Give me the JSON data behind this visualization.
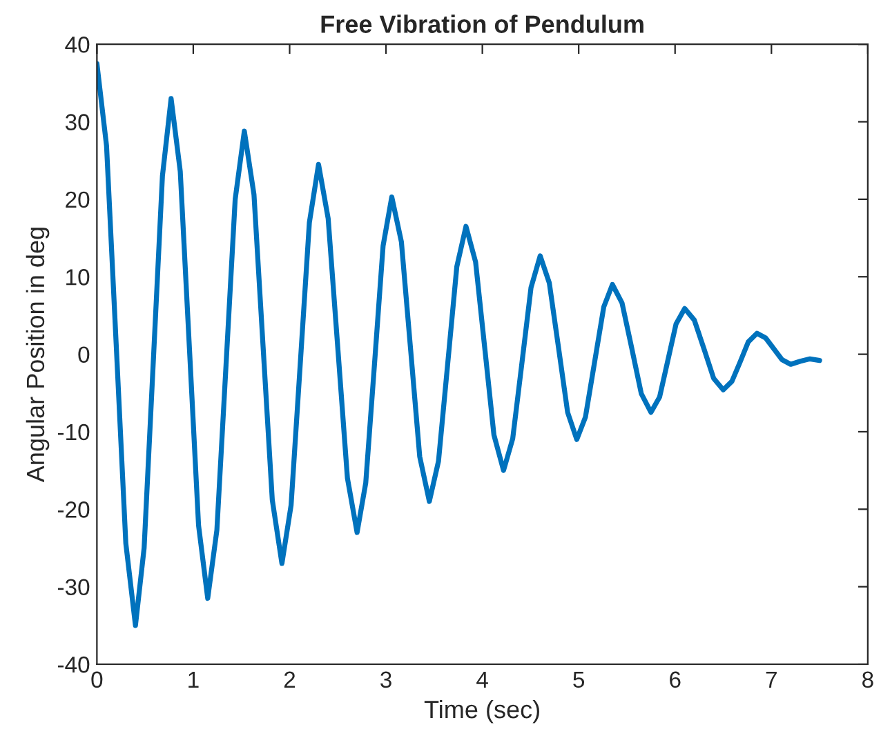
{
  "chart_data": {
    "type": "line",
    "title": "Free Vibration of Pendulum",
    "xlabel": "Time (sec)",
    "ylabel": "Angular Position in deg",
    "xlim": [
      0,
      8
    ],
    "ylim": [
      -40,
      40
    ],
    "xticks": [
      0,
      1,
      2,
      3,
      4,
      5,
      6,
      7,
      8
    ],
    "yticks": [
      -40,
      -30,
      -20,
      -10,
      0,
      10,
      20,
      30,
      40
    ],
    "grid": false,
    "legend": false,
    "line_style": "solid",
    "marker": "none",
    "series": [
      {
        "color": "#0072bd",
        "x": [
          0,
          0.1,
          0.2,
          0.3,
          0.4,
          0.49,
          0.585,
          0.68,
          0.77,
          0.865,
          0.96,
          1.055,
          1.15,
          1.245,
          1.34,
          1.435,
          1.53,
          1.63,
          1.725,
          1.82,
          1.92,
          2.015,
          2.11,
          2.205,
          2.3,
          2.4,
          2.5,
          2.6,
          2.7,
          2.79,
          2.88,
          2.97,
          3.06,
          3.16,
          3.255,
          3.35,
          3.45,
          3.545,
          3.64,
          3.735,
          3.83,
          3.93,
          4.025,
          4.12,
          4.22,
          4.315,
          4.41,
          4.505,
          4.6,
          4.695,
          4.79,
          4.885,
          4.98,
          5.07,
          5.165,
          5.26,
          5.35,
          5.45,
          5.55,
          5.65,
          5.75,
          5.84,
          5.925,
          6.01,
          6.1,
          6.2,
          6.3,
          6.4,
          6.5,
          6.59,
          6.675,
          6.76,
          6.85,
          6.94,
          7.025,
          7.11,
          7.2,
          7.3,
          7.4,
          7.5
        ],
        "values": [
          37.5,
          26.9,
          1.3,
          -24.4,
          -35,
          -25,
          -1,
          23,
          33,
          23.6,
          0.8,
          -22.1,
          -31.5,
          -22.7,
          -1.4,
          20,
          28.8,
          20.6,
          0.9,
          -18.8,
          -27,
          -19.5,
          -1.3,
          17,
          24.5,
          17.5,
          0.8,
          -16,
          -23,
          -16.6,
          -1.4,
          14,
          20.3,
          14.5,
          0.7,
          -13.2,
          -19,
          -13.8,
          -1.3,
          11.3,
          16.5,
          11.9,
          0.8,
          -10.4,
          -15,
          -10.9,
          -1.2,
          8.6,
          12.7,
          9.2,
          0.9,
          -7.5,
          -11,
          -8.1,
          -1,
          6.1,
          9,
          6.6,
          0.8,
          -5.1,
          -7.5,
          -5.5,
          -0.8,
          3.9,
          5.9,
          4.4,
          0.7,
          -3.1,
          -4.6,
          -3.5,
          -1,
          1.6,
          2.7,
          2.1,
          0.7,
          -0.7,
          -1.3,
          -0.9,
          -0.6,
          -0.8
        ]
      }
    ]
  }
}
